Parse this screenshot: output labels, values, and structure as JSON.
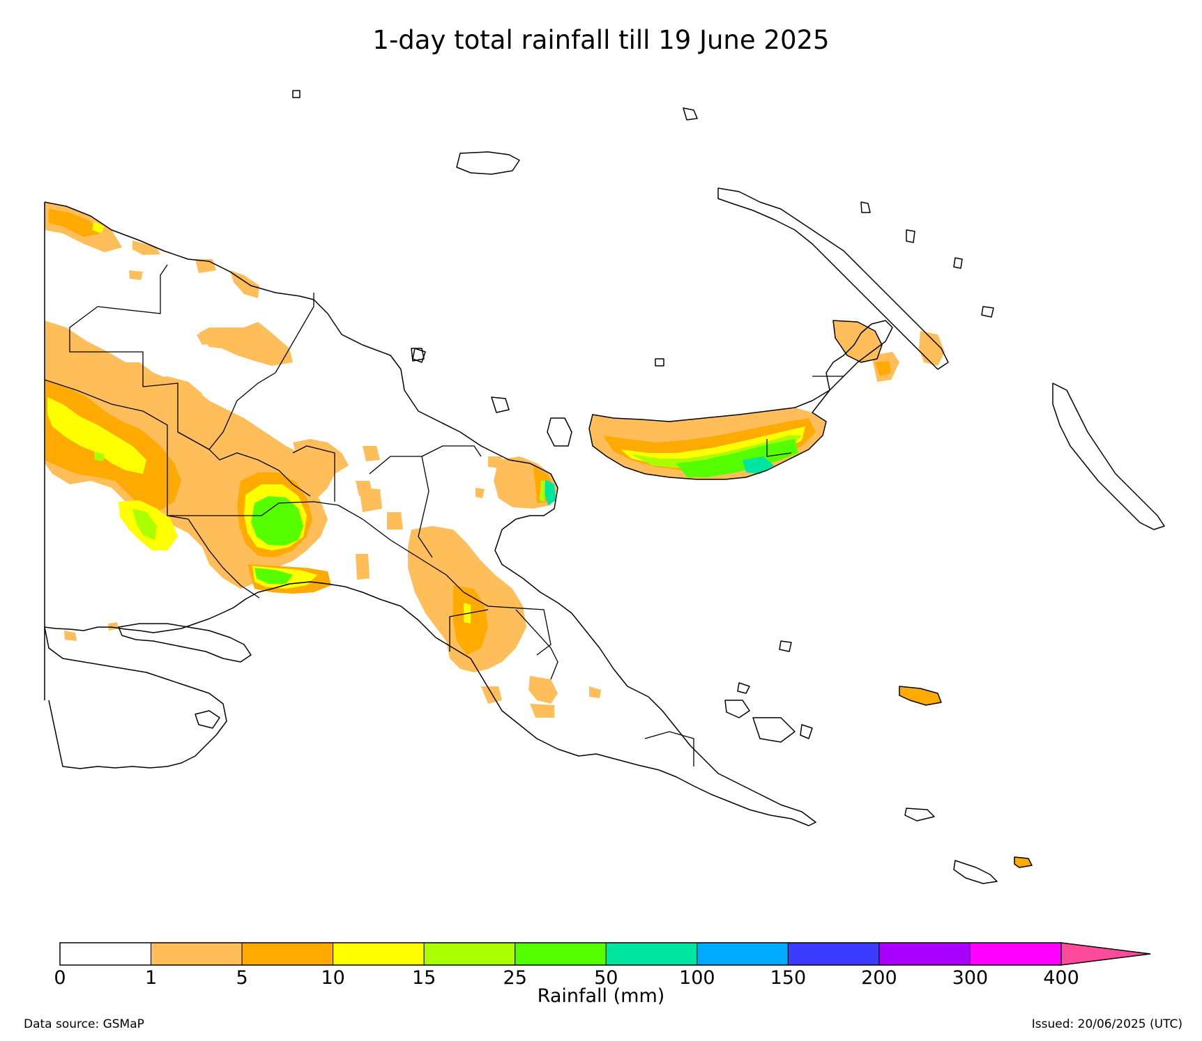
{
  "title": "1-day total rainfall till 19 June 2025",
  "colorbar": {
    "label": "Rainfall (mm)",
    "ticks": [
      "0",
      "1",
      "5",
      "10",
      "15",
      "25",
      "50",
      "100",
      "150",
      "200",
      "300",
      "400"
    ],
    "colors": [
      "#ffffff",
      "#ffbe5a",
      "#ffaa00",
      "#ffff00",
      "#aaff00",
      "#55ff00",
      "#00e6a0",
      "#00aaff",
      "#3c3cff",
      "#aa00ff",
      "#ff00ff"
    ],
    "extend_color": "#ff4b9b"
  },
  "map": {
    "region": "Papua New Guinea",
    "rain_colors": {
      "light": "#ffbe5a",
      "moderate": "#ffaa00",
      "heavy": "#ffff00",
      "heavier": "#aaff00",
      "very_heavy": "#55ff00",
      "intense": "#00e6a0"
    }
  },
  "footer": {
    "source": "Data source: GSMaP",
    "issued": "Issued: 20/06/2025 (UTC)"
  }
}
